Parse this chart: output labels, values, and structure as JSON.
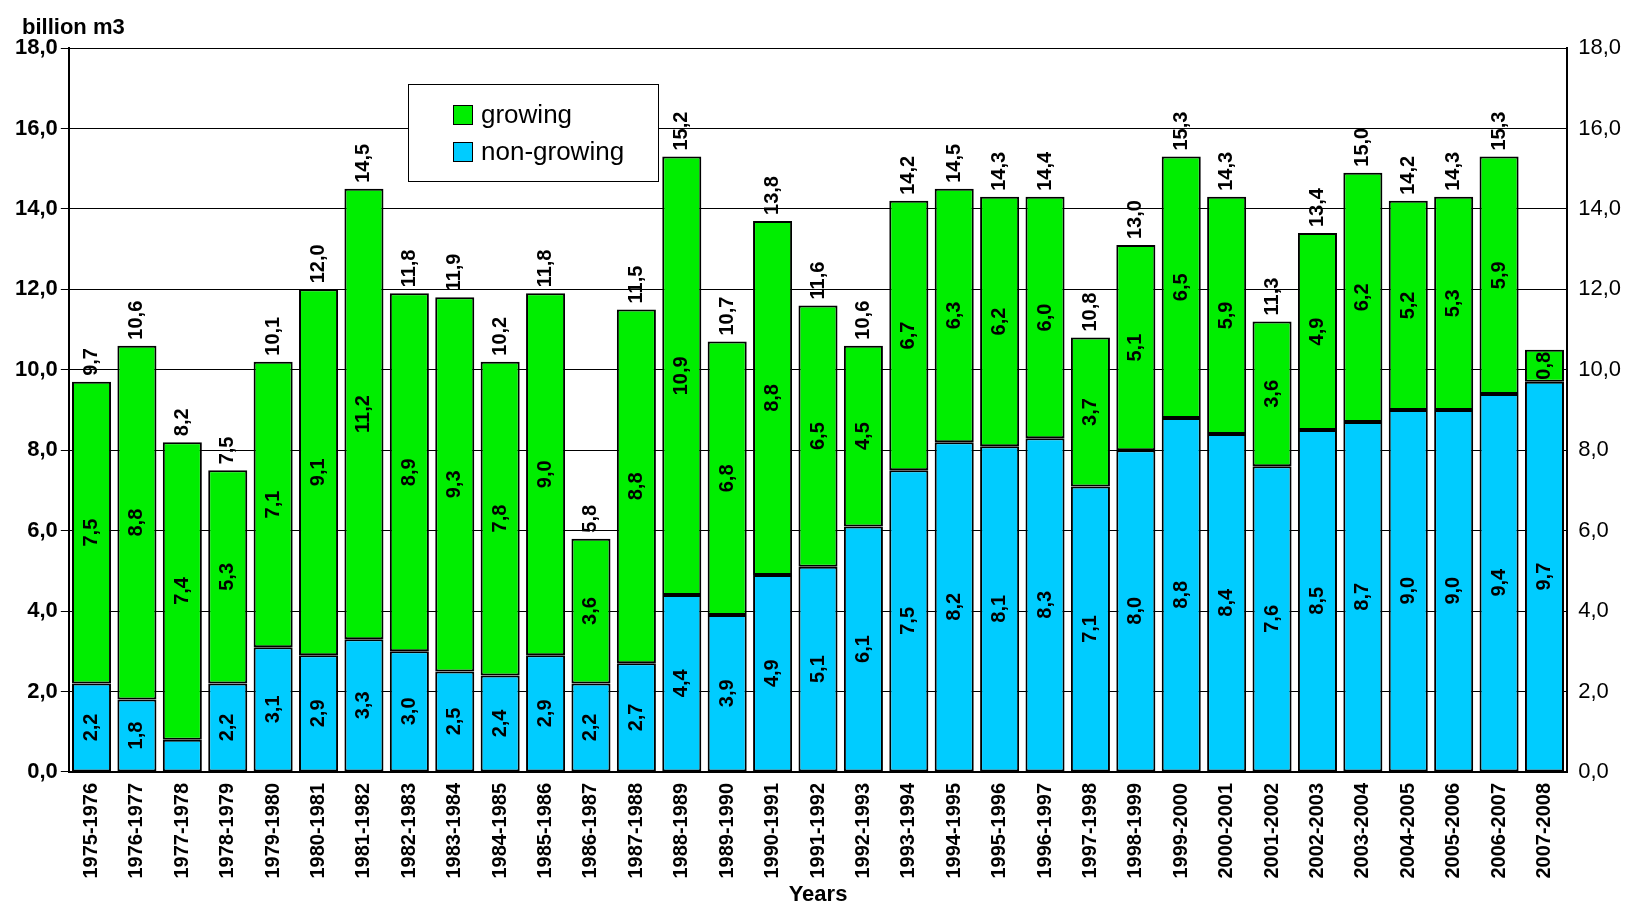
{
  "chart_data": {
    "type": "bar",
    "stacked": true,
    "ylabel": "billion m3",
    "xlabel": "Years",
    "categories": [
      "1975-1976",
      "1976-1977",
      "1977-1978",
      "1978-1979",
      "1979-1980",
      "1980-1981",
      "1981-1982",
      "1982-1983",
      "1983-1984",
      "1984-1985",
      "1985-1986",
      "1986-1987",
      "1987-1988",
      "1988-1989",
      "1989-1990",
      "1990-1991",
      "1991-1992",
      "1992-1993",
      "1993-1994",
      "1994-1995",
      "1995-1996",
      "1996-1997",
      "1997-1998",
      "1998-1999",
      "1999-2000",
      "2000-2001",
      "2001-2002",
      "2002-2003",
      "2003-2004",
      "2004-2005",
      "2005-2006",
      "2006-2007",
      "2007-2008"
    ],
    "series": [
      {
        "name": "non-growing",
        "color": "#00ccff",
        "values": [
          2.2,
          1.8,
          0.8,
          2.2,
          3.1,
          2.9,
          3.3,
          3.0,
          2.5,
          2.4,
          2.9,
          2.2,
          2.7,
          4.4,
          3.9,
          4.9,
          5.1,
          6.1,
          7.5,
          8.2,
          8.1,
          8.3,
          7.1,
          8.0,
          8.8,
          8.4,
          7.6,
          8.5,
          8.7,
          9.0,
          9.0,
          9.4,
          9.7
        ],
        "value_labels": [
          "2,2",
          "1,8",
          null,
          "2,2",
          "3,1",
          "2,9",
          "3,3",
          "3,0",
          "2,5",
          "2,4",
          "2,9",
          "2,2",
          "2,7",
          "4,4",
          "3,9",
          "4,9",
          "5,1",
          "6,1",
          "7,5",
          "8,2",
          "8,1",
          "8,3",
          "7,1",
          "8,0",
          "8,8",
          "8,4",
          "7,6",
          "8,5",
          "8,7",
          "9,0",
          "9,0",
          "9,4",
          "9,7"
        ]
      },
      {
        "name": "growing",
        "color": "#00ee00",
        "values": [
          7.5,
          8.8,
          7.4,
          5.3,
          7.1,
          9.1,
          11.2,
          8.9,
          9.3,
          7.8,
          9.0,
          3.6,
          8.8,
          10.9,
          6.8,
          8.8,
          6.5,
          4.5,
          6.7,
          6.3,
          6.2,
          6.0,
          3.7,
          5.1,
          6.5,
          5.9,
          3.6,
          4.9,
          6.2,
          5.2,
          5.3,
          5.9,
          0.8
        ],
        "value_labels": [
          "7,5",
          "8,8",
          "7,4",
          "5,3",
          "7,1",
          "9,1",
          "11,2",
          "8,9",
          "9,3",
          "7,8",
          "9,0",
          "3,6",
          "8,8",
          "10,9",
          "6,8",
          "8,8",
          "6,5",
          "4,5",
          "6,7",
          "6,3",
          "6,2",
          "6,0",
          "3,7",
          "5,1",
          "6,5",
          "5,9",
          "3,6",
          "4,9",
          "6,2",
          "5,2",
          "5,3",
          "5,9",
          "0,8"
        ]
      }
    ],
    "totals": [
      "9,7",
      "10,6",
      "8,2",
      "7,5",
      "10,1",
      "12,0",
      "14,5",
      "11,8",
      "11,9",
      "10,2",
      "11,8",
      "5,8",
      "11,5",
      "15,2",
      "10,7",
      "13,8",
      "11,6",
      "10,6",
      "14,2",
      "14,5",
      "14,3",
      "14,4",
      "10,8",
      "13,0",
      "15,3",
      "14,3",
      "11,3",
      "13,4",
      "15,0",
      "14,2",
      "14,3",
      "15,3",
      null
    ],
    "ylim": [
      0,
      18
    ],
    "yticks": [
      {
        "value": 0,
        "label": "0,0"
      },
      {
        "value": 2,
        "label": "2,0"
      },
      {
        "value": 4,
        "label": "4,0"
      },
      {
        "value": 6,
        "label": "6,0"
      },
      {
        "value": 8,
        "label": "8,0"
      },
      {
        "value": 10,
        "label": "10,0"
      },
      {
        "value": 12,
        "label": "12,0"
      },
      {
        "value": 14,
        "label": "14,0"
      },
      {
        "value": 16,
        "label": "16,0"
      },
      {
        "value": 18,
        "label": "18,0"
      }
    ],
    "y2lim": [
      0,
      18
    ],
    "y2ticks": [
      {
        "value": 0,
        "label": "0,0"
      },
      {
        "value": 2,
        "label": "2,0"
      },
      {
        "value": 4,
        "label": "4,0"
      },
      {
        "value": 6,
        "label": "6,0"
      },
      {
        "value": 8,
        "label": "8,0"
      },
      {
        "value": 10,
        "label": "10,0"
      },
      {
        "value": 12,
        "label": "12,0"
      },
      {
        "value": 14,
        "label": "14,0"
      },
      {
        "value": 16,
        "label": "16,0"
      },
      {
        "value": 18,
        "label": "18,0"
      }
    ],
    "grid": "y",
    "legend": "top left"
  }
}
